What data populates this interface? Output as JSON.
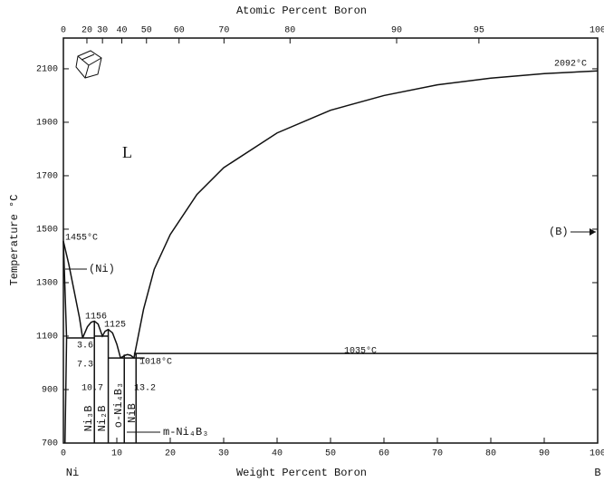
{
  "chart_data": {
    "type": "line",
    "x2_label": "Atomic Percent Boron",
    "x_label": "Weight Percent Boron",
    "y_label": "Temperature °C",
    "xlim": [
      0,
      100
    ],
    "ylim": [
      700,
      2215
    ],
    "xticks": [
      0,
      10,
      20,
      30,
      40,
      50,
      60,
      70,
      80,
      90,
      100
    ],
    "yticks": [
      700,
      900,
      1100,
      1300,
      1500,
      1700,
      1900,
      2100
    ],
    "x2ticks": [
      0,
      20,
      30,
      40,
      50,
      60,
      70,
      80,
      90,
      95,
      100
    ],
    "color": "#111111",
    "series": [
      {
        "x": [
          0,
          1,
          2,
          3,
          3.6
        ],
        "values": [
          1455,
          1370,
          1270,
          1170,
          1093
        ]
      },
      {
        "x": [
          3.6,
          4.5,
          5.2,
          5.8,
          6.5,
          7.3,
          7.8,
          8.4,
          9.2,
          10,
          10.7
        ],
        "values": [
          1093,
          1135,
          1152,
          1156,
          1145,
          1100,
          1118,
          1125,
          1112,
          1070,
          1018
        ]
      },
      {
        "x": [
          10.7,
          11.5,
          12,
          12.6,
          13.2
        ],
        "values": [
          1018,
          1028,
          1031,
          1028,
          1018
        ]
      },
      {
        "x": [
          13.2,
          15,
          17,
          20,
          25,
          30,
          40,
          50,
          60,
          70,
          80,
          90,
          100
        ],
        "values": [
          1018,
          1200,
          1350,
          1480,
          1630,
          1730,
          1860,
          1945,
          2000,
          2040,
          2065,
          2082,
          2092
        ]
      },
      {
        "x": [
          0,
          0.6,
          0.3
        ],
        "values": [
          1455,
          1093,
          700
        ]
      },
      {
        "x": [
          0.6,
          5.8
        ],
        "values": [
          1093,
          1093
        ]
      },
      {
        "x": [
          5.8,
          8.4
        ],
        "values": [
          1100,
          1100
        ]
      },
      {
        "x": [
          8.4,
          15.2
        ],
        "values": [
          1018,
          1018
        ]
      },
      {
        "x": [
          13.2,
          100
        ],
        "values": [
          1035,
          1035
        ]
      },
      {
        "x": [
          5.8,
          5.8
        ],
        "values": [
          700,
          1156
        ]
      },
      {
        "x": [
          8.4,
          8.4
        ],
        "values": [
          700,
          1125
        ]
      },
      {
        "x": [
          11.4,
          11.4
        ],
        "values": [
          700,
          1031
        ]
      },
      {
        "x": [
          13.6,
          13.6
        ],
        "values": [
          700,
          1035
        ]
      }
    ],
    "annotations": [
      "L",
      "1455°C",
      "(Ni)",
      "1156",
      "1125",
      "3.6",
      "7.3",
      "1018°C",
      "10.7",
      "13.2",
      "1035°C",
      "2092°C",
      "(B)",
      "m-Ni₄B₃",
      "Ni₃B",
      "Ni₂B",
      "o-Ni₄B₃",
      "NiB",
      "Ni",
      "B"
    ]
  }
}
